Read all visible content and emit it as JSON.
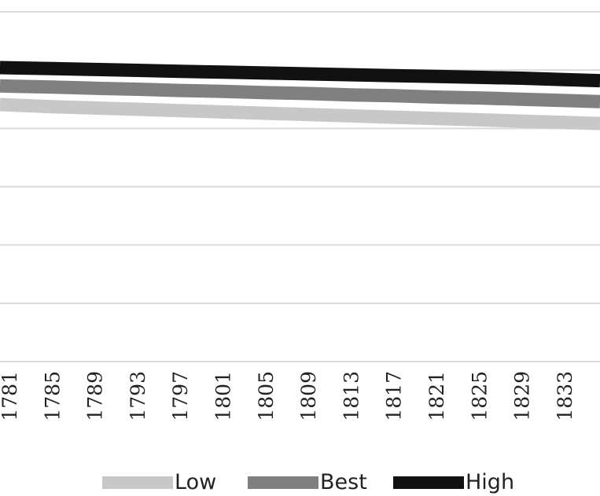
{
  "chart_data": {
    "type": "line",
    "title": "",
    "xlabel": "",
    "ylabel": "",
    "x": [
      "1781",
      "1785",
      "1789",
      "1793",
      "1797",
      "1801",
      "1805",
      "1809",
      "1813",
      "1817",
      "1821",
      "1825",
      "1829",
      "1833"
    ],
    "grid": true,
    "legend_position": "bottom",
    "series": [
      {
        "name": "Low",
        "color": "#c8c8c8",
        "values": [
          5.87,
          5.83,
          5.8,
          5.77,
          5.74,
          5.71,
          5.68,
          5.65,
          5.62,
          5.59,
          5.56,
          5.53,
          5.5,
          5.47
        ]
      },
      {
        "name": "Best",
        "color": "#808080",
        "values": [
          6.3,
          6.28,
          6.25,
          6.23,
          6.2,
          6.18,
          6.15,
          6.13,
          6.1,
          6.08,
          6.05,
          6.03,
          6.0,
          5.97
        ]
      },
      {
        "name": "High",
        "color": "#111111",
        "values": [
          6.72,
          6.7,
          6.68,
          6.66,
          6.64,
          6.62,
          6.6,
          6.58,
          6.56,
          6.54,
          6.52,
          6.5,
          6.48,
          6.45
        ]
      }
    ],
    "ylim": [
      0,
      8
    ]
  }
}
